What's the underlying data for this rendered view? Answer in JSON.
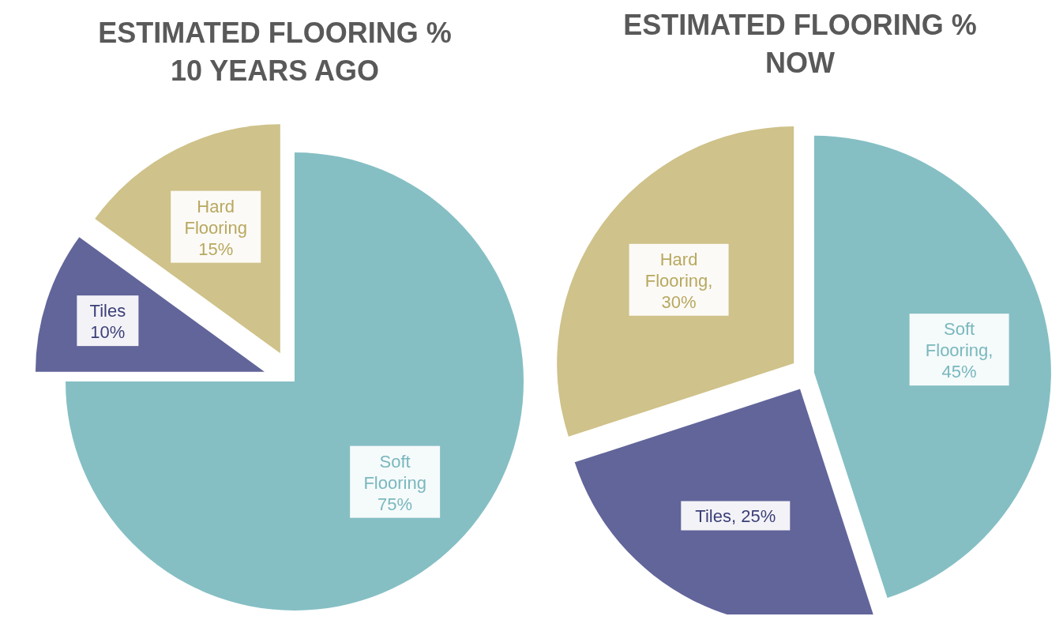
{
  "chart_data": [
    {
      "type": "pie",
      "title": "ESTIMATED FLOORING %\n10 YEARS AGO",
      "categories": [
        "Soft Flooring",
        "Tiles",
        "Hard Flooring"
      ],
      "values": [
        75,
        10,
        15
      ],
      "colors": [
        "#85bfc4",
        "#62659a",
        "#cfc28a"
      ],
      "value_labels": [
        "75%",
        "10%",
        "15%"
      ]
    },
    {
      "type": "pie",
      "title": "ESTIMATED FLOORING %\nNOW",
      "categories": [
        "Soft Flooring",
        "Tiles",
        "Hard Flooring"
      ],
      "values": [
        45,
        25,
        30
      ],
      "colors": [
        "#85bfc4",
        "#62659a",
        "#cfc28a"
      ],
      "value_labels": [
        ", 45%",
        ", 25%",
        ", 30%"
      ]
    }
  ]
}
